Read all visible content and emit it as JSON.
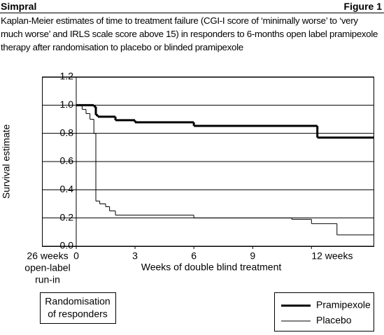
{
  "header": {
    "brand": "Simpral",
    "figure": "Figure 1"
  },
  "chart_data": {
    "type": "step",
    "title": "Kaplan-Meier estimates of time to treatment failure (CGI-I score of ‘minimally worse’ to ‘very much worse’ and IRLS scale score above 15) in responders to 6-months open label pramipexole therapy after randomisation to placebo or blinded pramipexole",
    "x_label": "Weeks of double blind treatment",
    "y_label": "Survival estimate",
    "run_in_label": [
      "26 weeks",
      "open-label",
      "run-in"
    ],
    "randomisation_label": [
      "Randomisation",
      "of responders"
    ],
    "xlim": [
      0,
      15.2
    ],
    "xticks": [
      0,
      3,
      6,
      9,
      {
        "value": 12,
        "label": "12 weeks"
      }
    ],
    "ylim": [
      0,
      1.2
    ],
    "yticks": [
      {
        "value": 0,
        "label": "0.0"
      },
      0.2,
      0.4,
      0.6,
      0.8,
      {
        "value": 1,
        "label": "1.0"
      },
      1.2
    ],
    "grid": true,
    "legend": "bottom-right",
    "series": [
      {
        "name": "Pramipexole",
        "color": "#000000",
        "linewidth": 3,
        "x": [
          0,
          0.9,
          1.0,
          1.1,
          2.0,
          3.0,
          6.0,
          12.3
        ],
        "values": [
          1.0,
          0.99,
          0.93,
          0.918,
          0.893,
          0.878,
          0.853,
          0.77
        ]
      },
      {
        "name": "Placebo",
        "color": "#000000",
        "linewidth": 1,
        "x": [
          0,
          0.3,
          0.5,
          0.7,
          0.9,
          1.0,
          1.2,
          1.5,
          1.7,
          2.0,
          6.0,
          11.0,
          12.0,
          13.3
        ],
        "values": [
          1.0,
          0.97,
          0.94,
          0.9,
          0.8,
          0.32,
          0.3,
          0.28,
          0.25,
          0.22,
          0.2,
          0.19,
          0.16,
          0.08
        ]
      }
    ]
  }
}
